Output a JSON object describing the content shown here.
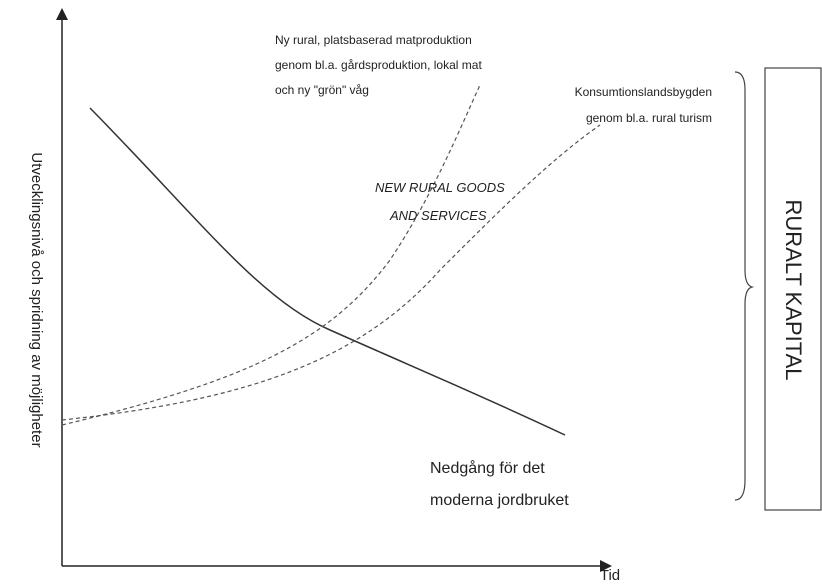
{
  "y_axis_label": "Utvecklingsnivå och spridning av möjligheter",
  "x_axis_label": "Tid",
  "annotations": {
    "local_food": [
      "Ny rural, platsbaserad matproduktion",
      "genom bl.a. gårdsproduktion, lokal mat",
      "och ny \"grön\" våg"
    ],
    "consumption": [
      "Konsumtionslandsbygden",
      "genom bl.a. rural turism"
    ],
    "center": [
      "NEW RURAL GOODS",
      "AND SERVICES"
    ],
    "decline": [
      "Nedgång för det",
      "moderna jordbruket"
    ]
  },
  "box_label": "RURALT KAPITAL"
}
